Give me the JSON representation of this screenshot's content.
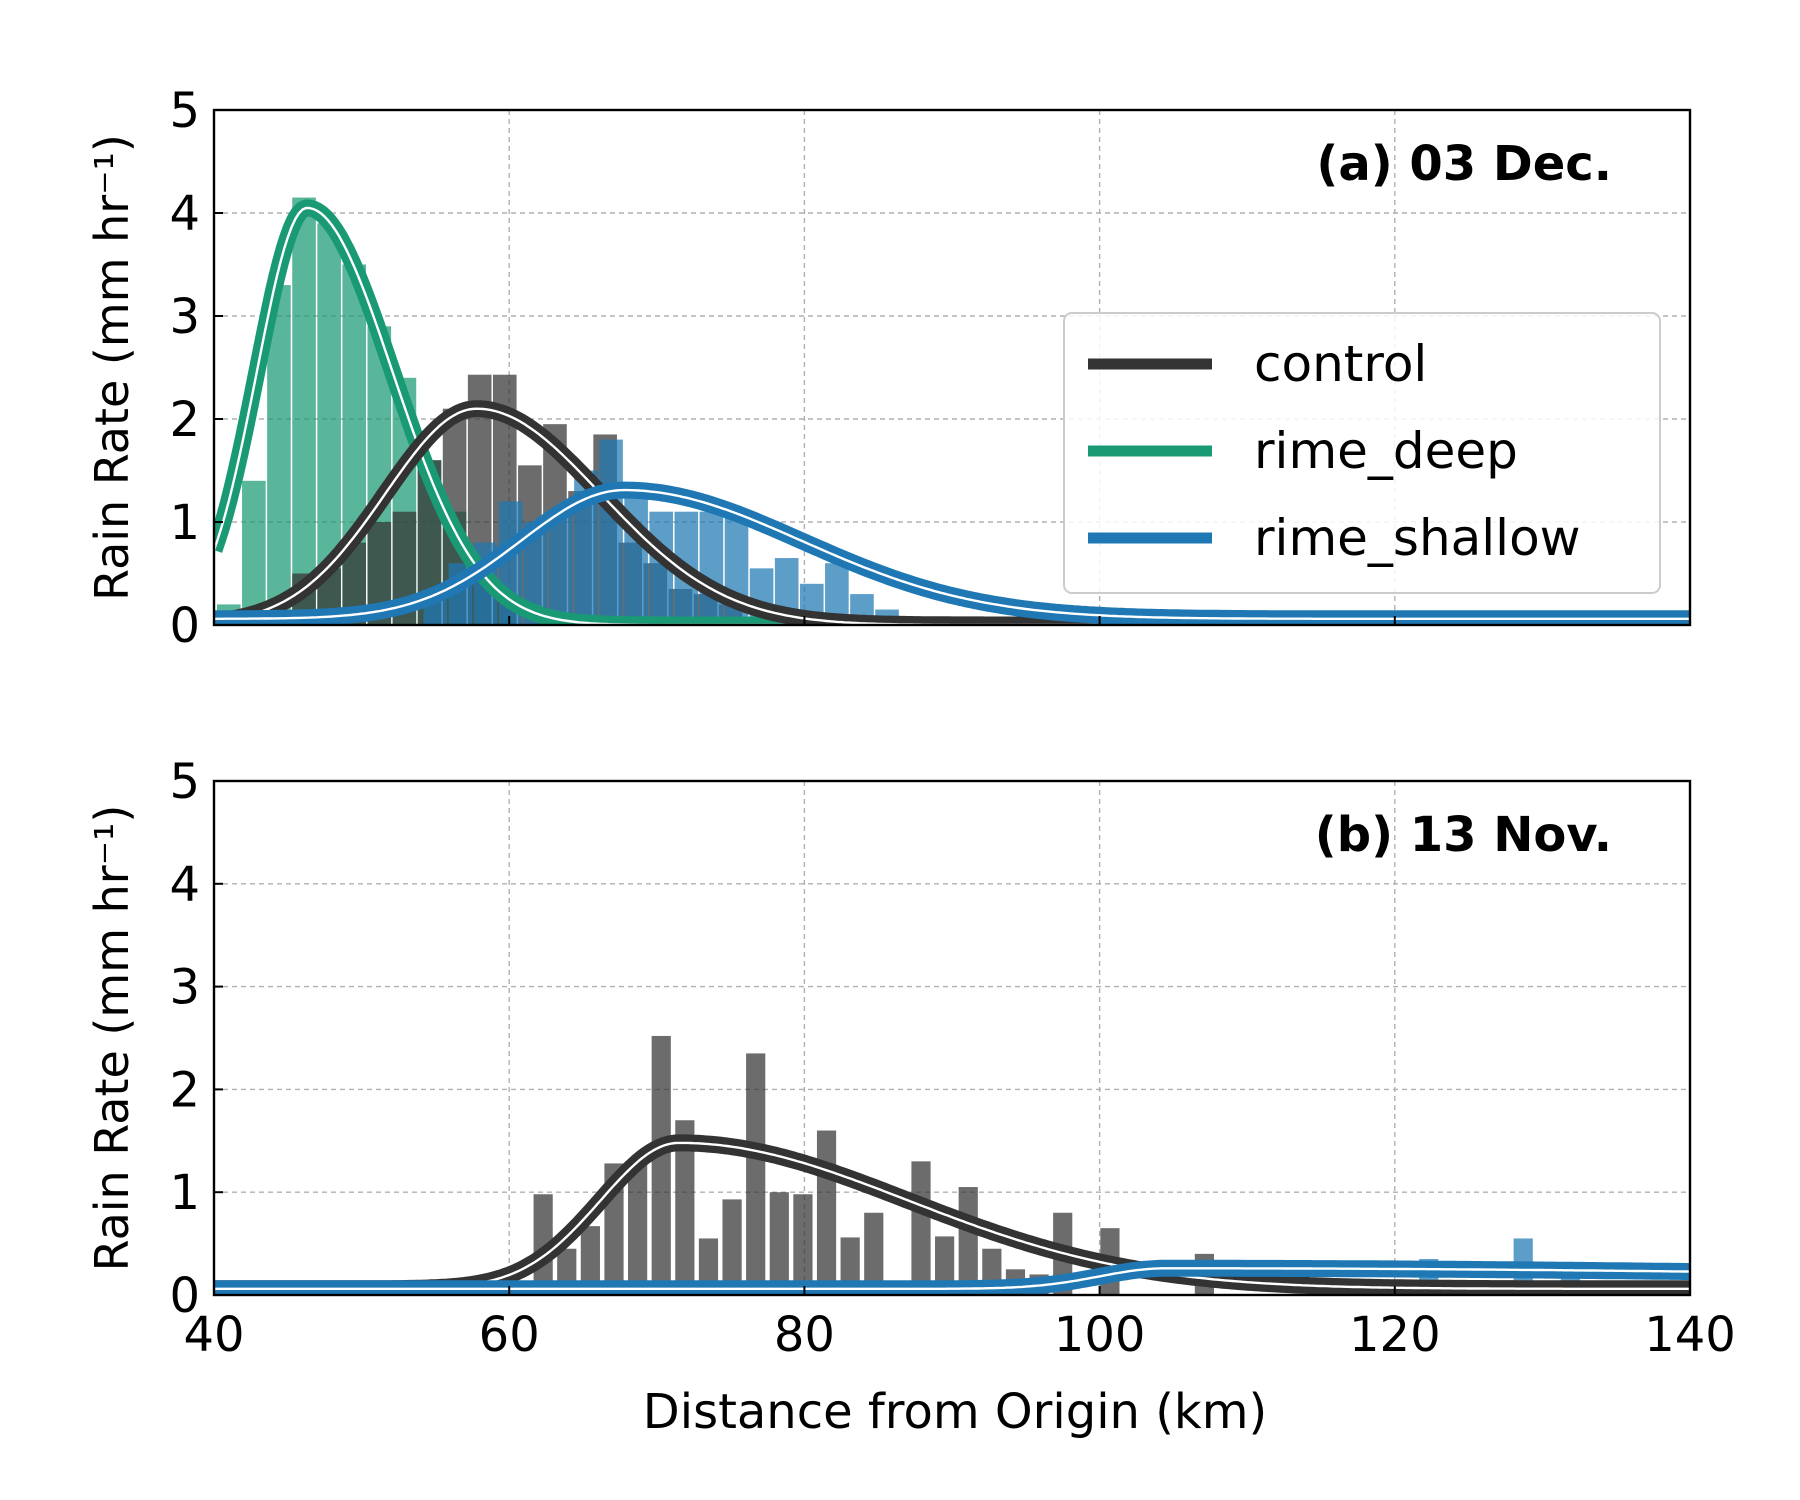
{
  "colors": {
    "control": "#333333",
    "rime_deep": "#1a9a74",
    "rime_shallow": "#1f78b4",
    "grid": "#b0b0b0"
  },
  "chart_data": [
    {
      "type": "bar",
      "panel_label": "(a) 03 Dec.",
      "xlabel": "",
      "ylabel": "Rain Rate (mm hr⁻¹)",
      "xlim": [
        40,
        140
      ],
      "ylim": [
        0,
        5
      ],
      "xticks": [
        40,
        60,
        80,
        100,
        120,
        140
      ],
      "yticks": [
        0,
        1,
        2,
        3,
        4,
        5
      ],
      "show_xticklabels": false,
      "grid": true,
      "legend": {
        "placement": "center-right",
        "entries": [
          {
            "label": "control",
            "series": "control"
          },
          {
            "label": "rime_deep",
            "series": "rime_deep"
          },
          {
            "label": "rime_shallow",
            "series": "rime_shallow"
          }
        ]
      },
      "bar_width": 1.6,
      "series": [
        {
          "name": "rime_deep",
          "bars": [
            {
              "x": 41,
              "y": 0.2
            },
            {
              "x": 42.7,
              "y": 1.4
            },
            {
              "x": 44.4,
              "y": 3.3
            },
            {
              "x": 46.1,
              "y": 4.15
            },
            {
              "x": 47.8,
              "y": 3.9
            },
            {
              "x": 49.5,
              "y": 3.5
            },
            {
              "x": 51.2,
              "y": 2.9
            },
            {
              "x": 52.9,
              "y": 2.4
            },
            {
              "x": 54.6,
              "y": 1.6
            },
            {
              "x": 56.3,
              "y": 1.1
            },
            {
              "x": 58,
              "y": 0.5
            },
            {
              "x": 59.7,
              "y": 0.3
            }
          ],
          "fit": {
            "amplitude": 4.05,
            "peak": 46.3,
            "sigma_left": 3.4,
            "sigma_right": 5.8,
            "baseline": 0.0
          }
        },
        {
          "name": "control",
          "bars": [
            {
              "x": 46.1,
              "y": 0.5
            },
            {
              "x": 47.8,
              "y": 0.55
            },
            {
              "x": 49.5,
              "y": 0.8
            },
            {
              "x": 51.2,
              "y": 1.0
            },
            {
              "x": 52.9,
              "y": 1.1
            },
            {
              "x": 54.6,
              "y": 1.6
            },
            {
              "x": 56.3,
              "y": 2.1
            },
            {
              "x": 58,
              "y": 2.43
            },
            {
              "x": 59.7,
              "y": 2.43
            },
            {
              "x": 61.4,
              "y": 1.55
            },
            {
              "x": 63.1,
              "y": 1.95
            },
            {
              "x": 64.8,
              "y": 1.3
            },
            {
              "x": 66.5,
              "y": 1.85
            },
            {
              "x": 68.2,
              "y": 0.8
            },
            {
              "x": 69.9,
              "y": 0.6
            },
            {
              "x": 71.6,
              "y": 0.35
            },
            {
              "x": 73.3,
              "y": 0.3
            },
            {
              "x": 75,
              "y": 0.2
            }
          ],
          "fit": {
            "amplitude": 2.1,
            "peak": 57.8,
            "sigma_left": 6.2,
            "sigma_right": 8.4,
            "baseline": 0.0
          }
        },
        {
          "name": "rime_shallow",
          "bars": [
            {
              "x": 55,
              "y": 0.3
            },
            {
              "x": 56.7,
              "y": 0.6
            },
            {
              "x": 58.4,
              "y": 0.8
            },
            {
              "x": 60.1,
              "y": 1.2
            },
            {
              "x": 61.8,
              "y": 1.0
            },
            {
              "x": 63.5,
              "y": 1.1
            },
            {
              "x": 65.2,
              "y": 1.5
            },
            {
              "x": 66.9,
              "y": 1.8
            },
            {
              "x": 68.6,
              "y": 1.35
            },
            {
              "x": 70.3,
              "y": 1.1
            },
            {
              "x": 72,
              "y": 1.1
            },
            {
              "x": 73.7,
              "y": 1.1
            },
            {
              "x": 75.4,
              "y": 1.05
            },
            {
              "x": 77.1,
              "y": 0.55
            },
            {
              "x": 78.8,
              "y": 0.65
            },
            {
              "x": 80.5,
              "y": 0.4
            },
            {
              "x": 82.2,
              "y": 0.6
            },
            {
              "x": 83.9,
              "y": 0.3
            },
            {
              "x": 85.6,
              "y": 0.15
            }
          ],
          "fit": {
            "amplitude": 1.25,
            "peak": 67.8,
            "sigma_left": 7.0,
            "sigma_right": 12.0,
            "baseline": 0.06
          }
        }
      ]
    },
    {
      "type": "bar",
      "panel_label": "(b) 13 Nov.",
      "xlabel": "Distance from Origin (km)",
      "ylabel": "Rain Rate (mm hr⁻¹)",
      "xlim": [
        40,
        140
      ],
      "ylim": [
        0,
        5
      ],
      "xticks": [
        40,
        60,
        80,
        100,
        120,
        140
      ],
      "yticks": [
        0,
        1,
        2,
        3,
        4,
        5
      ],
      "show_xticklabels": true,
      "grid": true,
      "bar_width": 1.3,
      "series": [
        {
          "name": "control",
          "bars": [
            {
              "x": 62.3,
              "y": 0.98
            },
            {
              "x": 63.9,
              "y": 0.45
            },
            {
              "x": 65.5,
              "y": 0.67
            },
            {
              "x": 67.1,
              "y": 1.28
            },
            {
              "x": 68.7,
              "y": 1.28
            },
            {
              "x": 70.3,
              "y": 2.52
            },
            {
              "x": 71.9,
              "y": 1.7
            },
            {
              "x": 73.5,
              "y": 0.55
            },
            {
              "x": 75.1,
              "y": 0.93
            },
            {
              "x": 76.7,
              "y": 2.35
            },
            {
              "x": 78.3,
              "y": 1.0
            },
            {
              "x": 79.9,
              "y": 0.98
            },
            {
              "x": 81.5,
              "y": 1.6
            },
            {
              "x": 83.1,
              "y": 0.56
            },
            {
              "x": 84.7,
              "y": 0.8
            },
            {
              "x": 87.9,
              "y": 1.3
            },
            {
              "x": 89.5,
              "y": 0.57
            },
            {
              "x": 91.1,
              "y": 1.05
            },
            {
              "x": 92.7,
              "y": 0.45
            },
            {
              "x": 94.3,
              "y": 0.25
            },
            {
              "x": 95.9,
              "y": 0.2
            },
            {
              "x": 97.5,
              "y": 0.8
            },
            {
              "x": 100.7,
              "y": 0.65
            },
            {
              "x": 107.1,
              "y": 0.4
            }
          ],
          "fit": {
            "amplitude": 1.42,
            "peak": 71.5,
            "sigma_left": 5.3,
            "sigma_right": 15.5,
            "baseline": 0.06
          }
        },
        {
          "name": "rime_shallow",
          "bars": [
            {
              "x": 122.3,
              "y": 0.35
            },
            {
              "x": 128.7,
              "y": 0.55
            },
            {
              "x": 131.9,
              "y": 0.3
            }
          ],
          "fit": {
            "amplitude": 0.2,
            "peak": 104.5,
            "sigma_left": 4.5,
            "sigma_right": 60.0,
            "baseline": 0.06
          }
        }
      ]
    }
  ]
}
